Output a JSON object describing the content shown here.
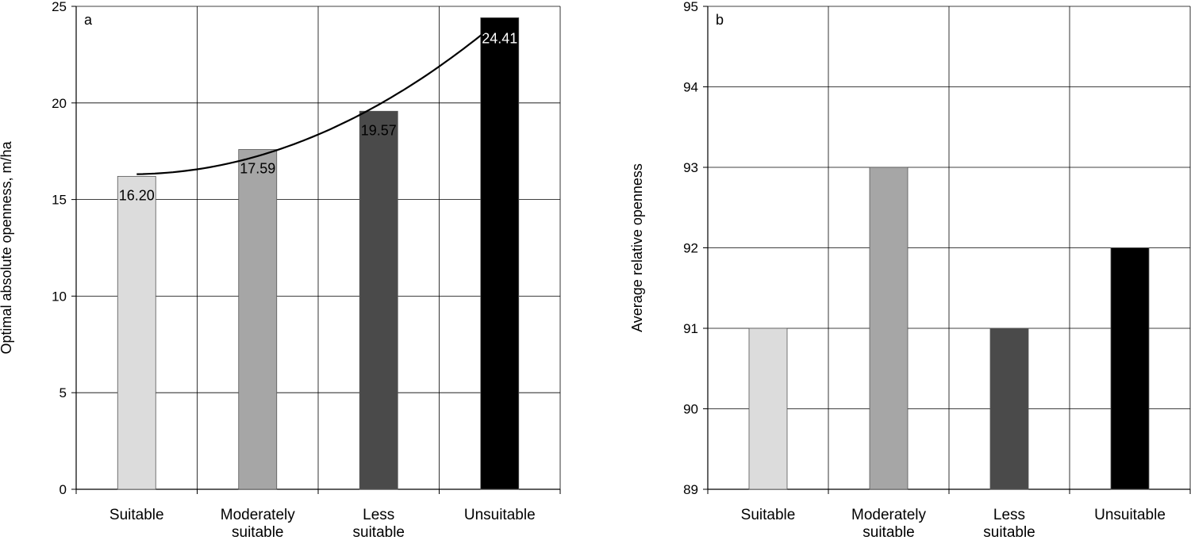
{
  "chart_data": [
    {
      "type": "bar",
      "panel_label": "a",
      "categories": [
        [
          "Suitable"
        ],
        [
          "Moderately",
          "suitable"
        ],
        [
          "Less",
          "suitable"
        ],
        [
          "Unsuitable"
        ]
      ],
      "values": [
        16.2,
        17.59,
        19.57,
        24.41
      ],
      "data_labels": [
        "16.20",
        "17.59",
        "19.57",
        "24.41"
      ],
      "ylabel": "Optimal absolute openness, m/ha",
      "ylim": [
        0,
        25
      ],
      "yticks": [
        "0",
        "5",
        "10",
        "15",
        "20",
        "25"
      ],
      "grid": true,
      "trendline": "polynomial",
      "colors": [
        "#dcdcdc",
        "#a6a6a6",
        "#4a4a4a",
        "#000000"
      ]
    },
    {
      "type": "bar",
      "panel_label": "b",
      "categories": [
        [
          "Suitable"
        ],
        [
          "Moderately",
          "suitable"
        ],
        [
          "Less",
          "suitable"
        ],
        [
          "Unsuitable"
        ]
      ],
      "values": [
        91,
        93,
        91,
        92
      ],
      "ylabel": "Average relative openness",
      "ylim": [
        89,
        95
      ],
      "yticks": [
        "89",
        "90",
        "91",
        "92",
        "93",
        "94",
        "95"
      ],
      "grid": true,
      "colors": [
        "#dcdcdc",
        "#a6a6a6",
        "#4a4a4a",
        "#000000"
      ]
    }
  ]
}
